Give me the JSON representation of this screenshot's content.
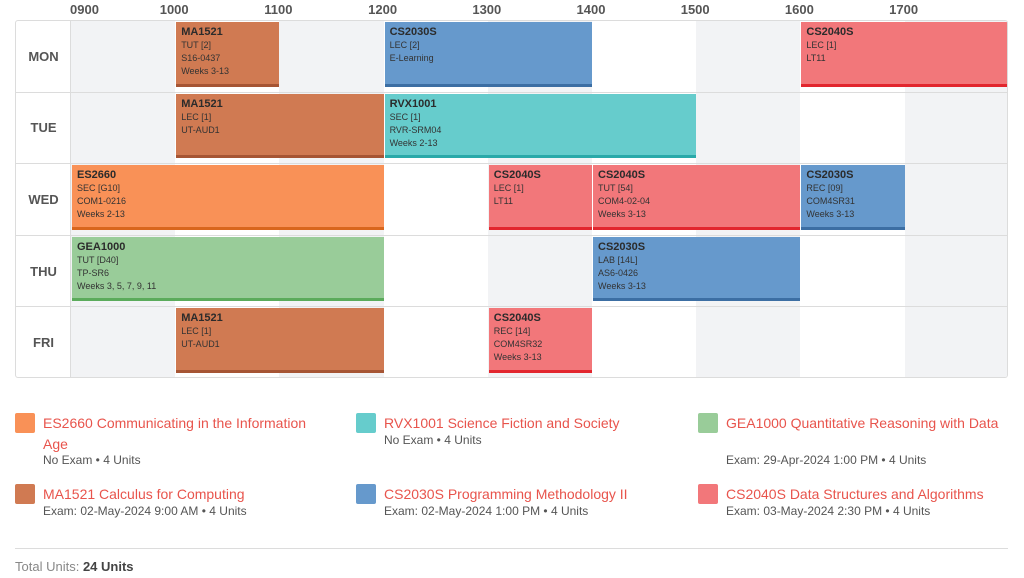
{
  "times": [
    "0900",
    "1000",
    "1100",
    "1200",
    "1300",
    "1400",
    "1500",
    "1600",
    "1700"
  ],
  "days": [
    "MON",
    "TUE",
    "WED",
    "THU",
    "FRI"
  ],
  "colors": {
    "orange": "#f99157",
    "brown": "#d07a52",
    "blue": "#6699cc",
    "red": "#f2777a",
    "teal": "#66cccc",
    "green": "#99cc99",
    "link": "#e8544c",
    "grid_shade": "#f2f3f5"
  },
  "lessons": [
    {
      "day": 0,
      "start": 1000,
      "end": 1100,
      "color": "brown",
      "code": "MA1521",
      "lines": [
        "TUT [2]",
        "S16-0437",
        "Weeks 3-13"
      ]
    },
    {
      "day": 0,
      "start": 1200,
      "end": 1400,
      "color": "blue",
      "code": "CS2030S",
      "lines": [
        "LEC [2]",
        "E-Learning"
      ]
    },
    {
      "day": 0,
      "start": 1600,
      "end": 1800,
      "color": "red",
      "code": "CS2040S",
      "lines": [
        "LEC [1]",
        "LT11"
      ]
    },
    {
      "day": 1,
      "start": 1000,
      "end": 1200,
      "color": "brown",
      "code": "MA1521",
      "lines": [
        "LEC [1]",
        "UT-AUD1"
      ]
    },
    {
      "day": 1,
      "start": 1200,
      "end": 1500,
      "color": "teal",
      "code": "RVX1001",
      "lines": [
        "SEC [1]",
        "RVR-SRM04",
        "Weeks 2-13"
      ]
    },
    {
      "day": 2,
      "start": 900,
      "end": 1200,
      "color": "orange",
      "code": "ES2660",
      "lines": [
        "SEC [G10]",
        "COM1-0216",
        "Weeks 2-13"
      ]
    },
    {
      "day": 2,
      "start": 1300,
      "end": 1400,
      "color": "red",
      "code": "CS2040S",
      "lines": [
        "LEC [1]",
        "LT11"
      ]
    },
    {
      "day": 2,
      "start": 1400,
      "end": 1600,
      "color": "red",
      "code": "CS2040S",
      "lines": [
        "TUT [54]",
        "COM4-02-04",
        "Weeks 3-13"
      ]
    },
    {
      "day": 2,
      "start": 1600,
      "end": 1700,
      "color": "blue",
      "code": "CS2030S",
      "lines": [
        "REC [09]",
        "COM4SR31",
        "Weeks 3-13"
      ]
    },
    {
      "day": 3,
      "start": 900,
      "end": 1200,
      "color": "green",
      "code": "GEA1000",
      "lines": [
        "TUT [D40]",
        "TP-SR6",
        "Weeks 3, 5, 7, 9, 11"
      ]
    },
    {
      "day": 3,
      "start": 1400,
      "end": 1600,
      "color": "blue",
      "code": "CS2030S",
      "lines": [
        "LAB [14L]",
        "AS6-0426",
        "Weeks 3-13"
      ]
    },
    {
      "day": 4,
      "start": 1000,
      "end": 1200,
      "color": "brown",
      "code": "MA1521",
      "lines": [
        "LEC [1]",
        "UT-AUD1"
      ]
    },
    {
      "day": 4,
      "start": 1300,
      "end": 1400,
      "color": "red",
      "code": "CS2040S",
      "lines": [
        "REC [14]",
        "COM4SR32",
        "Weeks 3-13"
      ]
    }
  ],
  "modules": [
    {
      "color": "orange",
      "title": "ES2660 Communicating in the Information Age",
      "meta": "No Exam • 4 Units"
    },
    {
      "color": "teal",
      "title": "RVX1001 Science Fiction and Society",
      "meta": "No Exam • 4 Units"
    },
    {
      "color": "green",
      "title": "GEA1000 Quantitative Reasoning with Data",
      "meta": "Exam: 29-Apr-2024 1:00 PM • 4 Units"
    },
    {
      "color": "brown",
      "title": "MA1521 Calculus for Computing",
      "meta": "Exam: 02-May-2024 9:00 AM • 4 Units"
    },
    {
      "color": "blue",
      "title": "CS2030S Programming Methodology II",
      "meta": "Exam: 02-May-2024 1:00 PM • 4 Units"
    },
    {
      "color": "red",
      "title": "CS2040S Data Structures and Algorithms",
      "meta": "Exam: 03-May-2024 2:30 PM • 4 Units"
    }
  ],
  "total": {
    "label": "Total Units:",
    "value": "24 Units"
  }
}
